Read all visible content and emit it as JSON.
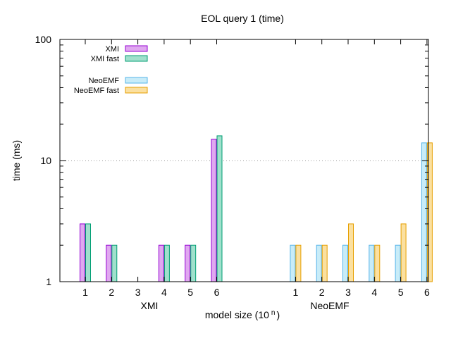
{
  "chart_data": {
    "type": "bar",
    "title": "EOL query 1 (time)",
    "xlabel": "model size (10",
    "xlabel_superscript": "n",
    "xlabel_suffix": ")",
    "ylabel": "time (ms)",
    "yscale": "log",
    "ylim": [
      1,
      100
    ],
    "ytick_labels": [
      "1",
      "10",
      "100"
    ],
    "grid": "horizontal dotted line at 10",
    "legend_placement": "top-left",
    "groups": [
      {
        "label": "XMI",
        "categories": [
          "1",
          "2",
          "3",
          "4",
          "5",
          "6"
        ],
        "series": [
          {
            "name": "XMI",
            "values": [
              3,
              2,
              null,
              2,
              2,
              15
            ],
            "fill": "#e0a8f0",
            "stroke": "#9400d3"
          },
          {
            "name": "XMI fast",
            "values": [
              3,
              2,
              null,
              2,
              2,
              16
            ],
            "fill": "#a0e0cc",
            "stroke": "#009e73"
          }
        ]
      },
      {
        "label": "NeoEMF",
        "categories": [
          "1",
          "2",
          "3",
          "4",
          "5",
          "6"
        ],
        "series": [
          {
            "name": "NeoEMF",
            "values": [
              2,
              2,
              2,
              2,
              2,
              14
            ],
            "fill": "#c8ecf8",
            "stroke": "#56b4e9"
          },
          {
            "name": "NeoEMF fast",
            "values": [
              2,
              2,
              3,
              2,
              3,
              14
            ],
            "fill": "#fbe0a0",
            "stroke": "#e69f00"
          }
        ]
      }
    ]
  }
}
